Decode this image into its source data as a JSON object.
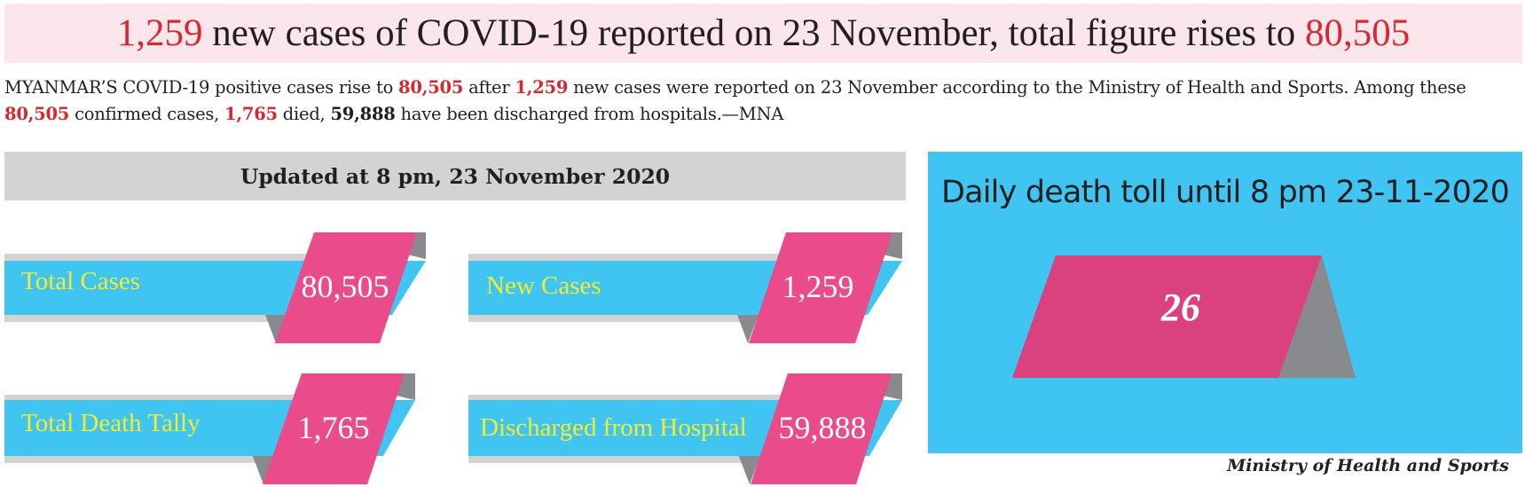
{
  "headline": {
    "new_cases": "1,259",
    "middle": " new cases of COVID-19 reported on 23 November, total figure rises to ",
    "total": "80,505"
  },
  "lede": {
    "t1": "MYANMAR’S COVID-19 positive cases rise to ",
    "v1": "80,505",
    "t2": " after ",
    "v2": "1,259",
    "t3": " new cases were reported on 23 November according to the Ministry of Health and Sports. Among these ",
    "v3": "80,505",
    "t4": " confirmed cases, ",
    "v4": "1,765",
    "t5": " died, ",
    "v5": "59,888",
    "t6": " have been discharged from hospitals.—MNA"
  },
  "updated_label": "Updated at 8 pm, 23 November 2020",
  "stats": [
    {
      "label": "Total Cases",
      "value": "80,505"
    },
    {
      "label": "New Cases",
      "value": "1,259"
    },
    {
      "label": "Total Death Tally",
      "value": "1,765"
    },
    {
      "label": "Discharged from Hospital",
      "value": "59,888"
    }
  ],
  "deaths_panel": {
    "title": "Daily death toll until 8 pm 23-11-2020",
    "value": "26"
  },
  "source": "Ministry of Health and Sports",
  "colors": {
    "red": "#d7282f",
    "pink_bg": "#fbe6ec",
    "cyan": "#40c4f1",
    "magenta": "#ea4b8b",
    "deep_magenta": "#d9427e",
    "gray": "#898a8d",
    "light_gray": "#d2d3d5",
    "yellow": "#f3ee2b"
  }
}
